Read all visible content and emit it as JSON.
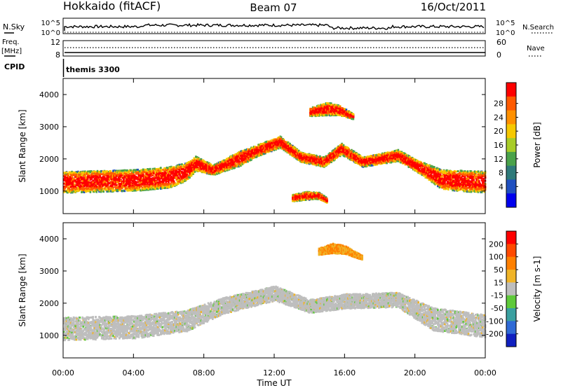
{
  "header": {
    "station": "Hokkaido (fitACF)",
    "beam": "Beam 07",
    "date": "16/Oct/2011"
  },
  "strip": {
    "nsky_label": "N.Sky",
    "nsearch_label": "N.Search",
    "freq_label_1": "Freq.",
    "freq_label_2": "[MHz]",
    "nave_label": "Nave",
    "cpid_label": "CPID",
    "cpid_value": "themis 3300",
    "nsky_ticks": [
      "10^5",
      "10^0"
    ],
    "nsearch_ticks": [
      "10^5",
      "10^0"
    ],
    "freq_ticks": [
      "12",
      "8"
    ],
    "nave_ticks": [
      "60",
      "0"
    ]
  },
  "chart_data": [
    {
      "type": "heatmap",
      "panel": "power",
      "xlabel": "Time UT",
      "ylabel": "Slant Range [km]",
      "xlim": [
        0,
        24
      ],
      "ylim": [
        300,
        4500
      ],
      "x_ticks": [
        "00:00",
        "04:00",
        "08:00",
        "12:00",
        "16:00",
        "20:00",
        "00:00"
      ],
      "y_ticks": [
        1000,
        2000,
        3000,
        4000
      ],
      "colorbar": {
        "label": "Power [dB]",
        "ticks": [
          4,
          8,
          12,
          16,
          20,
          24,
          28
        ],
        "range": [
          0,
          32
        ],
        "colors": [
          "#0000ee",
          "#2050c0",
          "#2f7a7a",
          "#4aa24a",
          "#a8cc28",
          "#f6c800",
          "#ff9000",
          "#ff5a00",
          "#ff0000"
        ]
      },
      "echo_bands": [
        {
          "t": [
            0,
            2,
            4,
            6,
            7,
            7.5,
            8.5,
            10,
            11,
            12.3,
            13.5,
            14.8,
            15.8,
            17,
            19,
            20,
            21.5,
            23,
            24
          ],
          "center": [
            1270,
            1300,
            1330,
            1420,
            1600,
            1850,
            1650,
            2000,
            2250,
            2520,
            2050,
            1900,
            2300,
            1900,
            2100,
            1800,
            1350,
            1300,
            1280
          ],
          "width": [
            650,
            650,
            650,
            650,
            550,
            450,
            300,
            450,
            350,
            350,
            300,
            300,
            350,
            300,
            350,
            350,
            600,
            650,
            650
          ],
          "level": [
            26
          ]
        },
        {
          "t": [
            14,
            15,
            15.7,
            16.5
          ],
          "center": [
            3450,
            3550,
            3500,
            3300
          ],
          "width": [
            250,
            400,
            300,
            150
          ],
          "level": [
            27
          ]
        },
        {
          "t": [
            13,
            13.8,
            14.5,
            15
          ],
          "center": [
            780,
            850,
            850,
            700
          ],
          "width": [
            200,
            250,
            200,
            150
          ],
          "level": [
            28
          ]
        }
      ]
    },
    {
      "type": "heatmap",
      "panel": "velocity",
      "xlabel": "Time UT",
      "ylabel": "Slant Range [km]",
      "xlim": [
        0,
        24
      ],
      "ylim": [
        300,
        4500
      ],
      "x_ticks": [
        "00:00",
        "04:00",
        "08:00",
        "12:00",
        "16:00",
        "20:00",
        "00:00"
      ],
      "y_ticks": [
        1000,
        2000,
        3000,
        4000
      ],
      "colorbar": {
        "label": "Velocity [m s-1]",
        "ticks": [
          200,
          100,
          50,
          15,
          -15,
          -50,
          -100,
          -200
        ],
        "colors": [
          "#1020c0",
          "#2f6ad6",
          "#3aa0a0",
          "#5fca3a",
          "#bebebe",
          "#f0b428",
          "#ff8000",
          "#ff4a00",
          "#ff0000"
        ]
      },
      "echo_bands": [
        {
          "t": [
            0,
            4,
            7,
            9,
            12,
            14,
            16,
            19,
            21,
            24
          ],
          "center": [
            1200,
            1250,
            1450,
            1900,
            2300,
            1900,
            2050,
            2100,
            1500,
            1280
          ],
          "width": [
            700,
            700,
            650,
            500,
            450,
            400,
            450,
            450,
            700,
            700
          ],
          "class": "ground-scatter-grey"
        },
        {
          "t": [
            14.5,
            15.3,
            16,
            17
          ],
          "center": [
            3600,
            3700,
            3650,
            3400
          ],
          "width": [
            200,
            300,
            250,
            120
          ],
          "class": "negative-orange"
        }
      ]
    }
  ],
  "colors": {
    "axis": "#000000",
    "text": "#000000"
  }
}
